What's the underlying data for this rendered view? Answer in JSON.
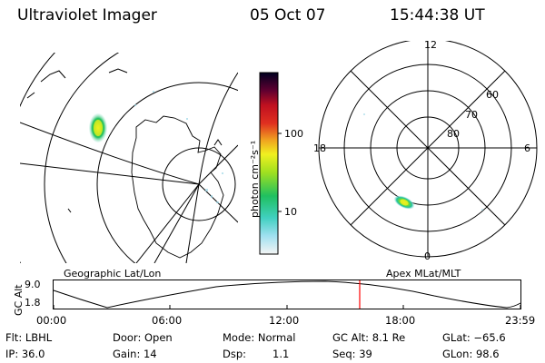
{
  "header": {
    "instrument": "Ultraviolet Imager",
    "date": "05 Oct 07",
    "time": "15:44:38 UT"
  },
  "left_panel": {
    "caption": "Geographic Lat/Lon"
  },
  "right_panel": {
    "caption": "Apex MLat/MLT",
    "mlt_labels": [
      "12",
      "18",
      "6",
      "0"
    ],
    "lat_labels": [
      "60",
      "70",
      "80"
    ]
  },
  "colorbar": {
    "label": "photon cm⁻²s⁻¹",
    "ticks": [
      "100",
      "10"
    ]
  },
  "timeline": {
    "axis_label": "GC Alt",
    "y_ticks": [
      "9.0",
      "1.8"
    ],
    "x_ticks": [
      "00:00",
      "06:00",
      "12:00",
      "18:00",
      "23:59"
    ],
    "marker_color": "#ff0000"
  },
  "info": {
    "flt": "Flt: LBHL",
    "ip": "IP: 36.0",
    "door": "Door: Open",
    "gain": "Gain: 14",
    "mode": "Mode: Normal",
    "dsp": "Dsp:",
    "dsp_value": "1.1",
    "gcalt": "GC Alt: 8.1 Re",
    "seq": "Seq: 39",
    "glat": "GLat: −65.6",
    "glon": "GLon: 98.6"
  }
}
